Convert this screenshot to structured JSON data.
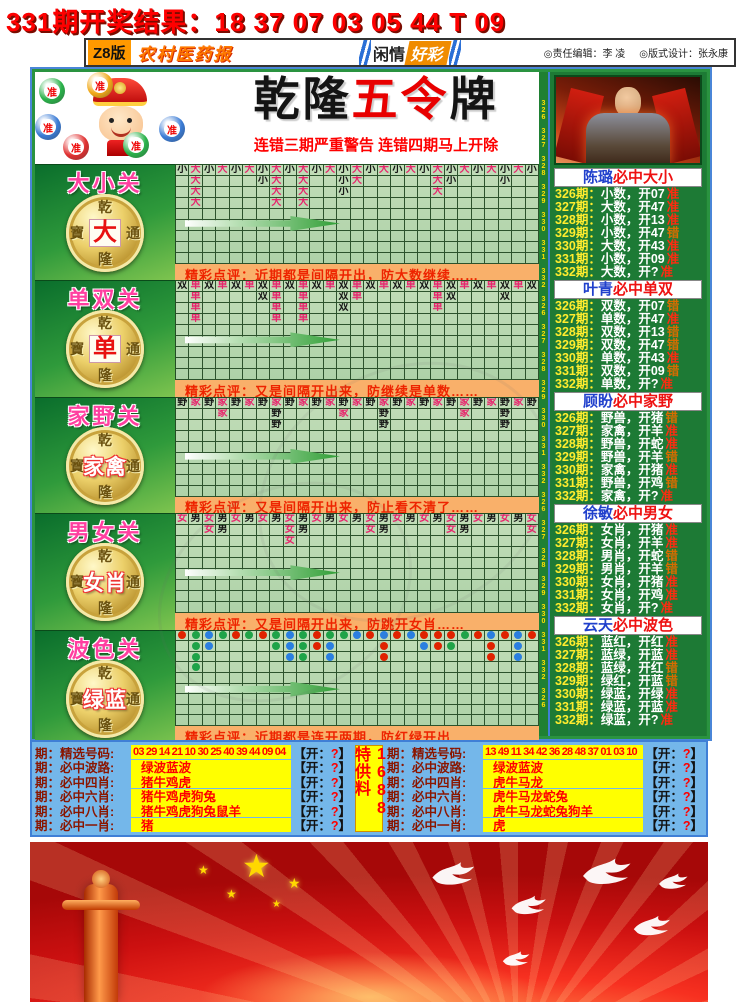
{
  "top_line": "331期开奖结果：18 37 07 03 05 44 T 09",
  "masthead": {
    "edition": "Z8版",
    "paper_name": "农村医药报",
    "column_left": "闲情",
    "column_right": "好彩",
    "editor": "◎责任编辑：李 凌",
    "designer": "◎版式设计：张永康"
  },
  "header": {
    "title_parts": [
      {
        "text": "乾隆",
        "color": "#141414"
      },
      {
        "text": "五令",
        "color": "#e80000"
      },
      {
        "text": "牌",
        "color": "#141414"
      }
    ],
    "warning": "连错三期严重警告 连错四期马上开除",
    "ball_label": "准",
    "balls": [
      "#2ab24a",
      "#3a7bd5",
      "#e03030",
      "#f0a818",
      "#2ab24a",
      "#3a7bd5"
    ]
  },
  "period_strip": "326 327 328 329 330 331 332",
  "sections": [
    {
      "title": "大小关",
      "coin_ring": [
        "乾",
        "寶",
        "通",
        "隆"
      ],
      "coin_center": "大",
      "grid_type": "char",
      "hot": "大",
      "rows": [
        "小大小大小大小大小大小大小大小大小大小大小大小大小大小",
        ".大....小大.大..小大.....大小...小",
        ".大.....大.大..小......大",
        ".大.....大.大"
      ],
      "comment_label": "精彩点评：",
      "comment": "近期都是间隔开出，防大数继续……"
    },
    {
      "title": "单双关",
      "coin_ring": [
        "乾",
        "寶",
        "通",
        "隆"
      ],
      "coin_center": "单",
      "grid_type": "char",
      "hot": "单",
      "rows": [
        "双单双单双单双单双单双单双单双单双单双单双单双单双单双",
        ".单....双单.单..双单.....单双...双",
        ".单.....单.单..双......单",
        ".单.....单.单"
      ],
      "comment_label": "精彩点评：",
      "comment": "又是间隔开出来，防继续是单数……"
    },
    {
      "title": "家野关",
      "coin_ring": [
        "乾",
        "寶",
        "通",
        "隆"
      ],
      "coin_center": "家禽",
      "grid_type": "char",
      "hot": "家",
      "rows": [
        "野家野家野家野家野家野家野家野家野家野家野家野家野家野",
        "...家...野....家..野.....家..野",
        ".......野.......野........野"
      ],
      "comment_label": "精彩点评：",
      "comment": "又是间隔开出来，防止看不清了……"
    },
    {
      "title": "男女关",
      "coin_ring": [
        "乾",
        "寶",
        "通",
        "隆"
      ],
      "coin_center": "女肖",
      "grid_type": "char",
      "hot": "女",
      "rows": [
        "女男女男女男女男女男女男女男女男女男女男女男女男女男女",
        "..女男....女男....女男....女男....女",
        "........女"
      ],
      "comment_label": "精彩点评：",
      "comment": "又是间隔开出来，防跳开女肖……"
    },
    {
      "title": "波色关",
      "coin_ring": [
        "乾",
        "寶",
        "通",
        "隆"
      ],
      "coin_center": "绿蓝",
      "grid_type": "dot",
      "hot": "",
      "rows": [
        "RGBGRGRGBGRGGBRBRBRRRGRBRBR",
        ".GB....GBGRB...R..BRG..R.B",
        ".G......BG.B...R.......R.B",
        ".G"
      ],
      "comment_label": "精彩点评：",
      "comment": "近期都是连开两期，防红绿开出……"
    }
  ],
  "experts": [
    {
      "name": "陈璐",
      "claim": "必中大小",
      "rows": [
        {
          "p": "326期：",
          "pick": "小数，开07",
          "v": "准"
        },
        {
          "p": "327期：",
          "pick": "大数，开47",
          "v": "准"
        },
        {
          "p": "328期：",
          "pick": "小数，开13",
          "v": "准"
        },
        {
          "p": "329期：",
          "pick": "小数，开47",
          "v": "错"
        },
        {
          "p": "330期：",
          "pick": "大数，开43",
          "v": "准"
        },
        {
          "p": "331期：",
          "pick": "小数，开09",
          "v": "准"
        },
        {
          "p": "332期：",
          "pick": "大数，开?",
          "v": "准"
        }
      ]
    },
    {
      "name": "叶青",
      "claim": "必中单双",
      "rows": [
        {
          "p": "326期：",
          "pick": "双数，开07",
          "v": "错"
        },
        {
          "p": "327期：",
          "pick": "单数，开47",
          "v": "准"
        },
        {
          "p": "328期：",
          "pick": "双数，开13",
          "v": "错"
        },
        {
          "p": "329期：",
          "pick": "双数，开47",
          "v": "错"
        },
        {
          "p": "330期：",
          "pick": "单数，开43",
          "v": "准"
        },
        {
          "p": "331期：",
          "pick": "双数，开09",
          "v": "错"
        },
        {
          "p": "332期：",
          "pick": "单数，开?",
          "v": "准"
        }
      ]
    },
    {
      "name": "顾盼",
      "claim": "必中家野",
      "rows": [
        {
          "p": "326期：",
          "pick": "野兽，开猪",
          "v": "错"
        },
        {
          "p": "327期：",
          "pick": "家禽，开羊",
          "v": "准"
        },
        {
          "p": "328期：",
          "pick": "野兽，开蛇",
          "v": "准"
        },
        {
          "p": "329期：",
          "pick": "野兽，开羊",
          "v": "错"
        },
        {
          "p": "330期：",
          "pick": "家禽，开猪",
          "v": "准"
        },
        {
          "p": "331期：",
          "pick": "野兽，开鸡",
          "v": "错"
        },
        {
          "p": "332期：",
          "pick": "家禽，开?",
          "v": "准"
        }
      ]
    },
    {
      "name": "徐敏",
      "claim": "必中男女",
      "rows": [
        {
          "p": "326期：",
          "pick": "女肖，开猪",
          "v": "准"
        },
        {
          "p": "327期：",
          "pick": "女肖，开羊",
          "v": "准"
        },
        {
          "p": "328期：",
          "pick": "男肖，开蛇",
          "v": "错"
        },
        {
          "p": "329期：",
          "pick": "男肖，开羊",
          "v": "错"
        },
        {
          "p": "330期：",
          "pick": "女肖，开猪",
          "v": "准"
        },
        {
          "p": "331期：",
          "pick": "女肖，开鸡",
          "v": "准"
        },
        {
          "p": "332期：",
          "pick": "女肖，开?",
          "v": "准"
        }
      ]
    },
    {
      "name": "云天",
      "claim": "必中波色",
      "rows": [
        {
          "p": "326期：",
          "pick": "蓝红，开红",
          "v": "准"
        },
        {
          "p": "327期：",
          "pick": "蓝绿，开蓝",
          "v": "准"
        },
        {
          "p": "328期：",
          "pick": "蓝绿，开红",
          "v": "错"
        },
        {
          "p": "329期：",
          "pick": "绿红，开蓝",
          "v": "错"
        },
        {
          "p": "330期：",
          "pick": "绿蓝，开绿",
          "v": "准"
        },
        {
          "p": "331期：",
          "pick": "绿蓝，开蓝",
          "v": "准"
        },
        {
          "p": "332期：",
          "pick": "绿蓝，开?",
          "v": "准"
        }
      ]
    }
  ],
  "tips": {
    "strip": "1688特供料",
    "open_pre": "【开：",
    "open_q": "?",
    "open_post": "】",
    "left_rows": [
      {
        "label": "期：精选号码:",
        "value": "03 29 14 21 10 30 25 40 39 44 09 04"
      },
      {
        "label": "期：必中波路:",
        "value": "绿波蓝波"
      },
      {
        "label": "期：必中四肖:",
        "value": "猪牛鸡虎"
      },
      {
        "label": "期：必中六肖:",
        "value": "猪牛鸡虎狗兔"
      },
      {
        "label": "期：必中八肖:",
        "value": "猪牛鸡虎狗兔鼠羊"
      },
      {
        "label": "期：必中一肖:",
        "value": "猪"
      }
    ],
    "right_rows": [
      {
        "label": "期：精选号码:",
        "value": "13 49 11 34 42 36 28 48 37 01 03 10"
      },
      {
        "label": "期：必中波路:",
        "value": "绿波蓝波"
      },
      {
        "label": "期：必中四肖:",
        "value": "虎牛马龙"
      },
      {
        "label": "期：必中六肖:",
        "value": "虎牛马龙蛇兔"
      },
      {
        "label": "期：必中八肖:",
        "value": "虎牛马龙蛇兔狗羊"
      },
      {
        "label": "期：必中一肖:",
        "value": "虎"
      }
    ]
  },
  "colors": {
    "accent_red": "#fe0000",
    "board_green": "#1f8033",
    "grid_green": "#b9d9b0",
    "hot_pink": "#e8246c",
    "tip_blue": "#74b7ea",
    "tip_yellow": "#ffff00",
    "dot_red": "#e02200",
    "dot_green": "#1fa348",
    "dot_blue": "#2b7fe0"
  }
}
